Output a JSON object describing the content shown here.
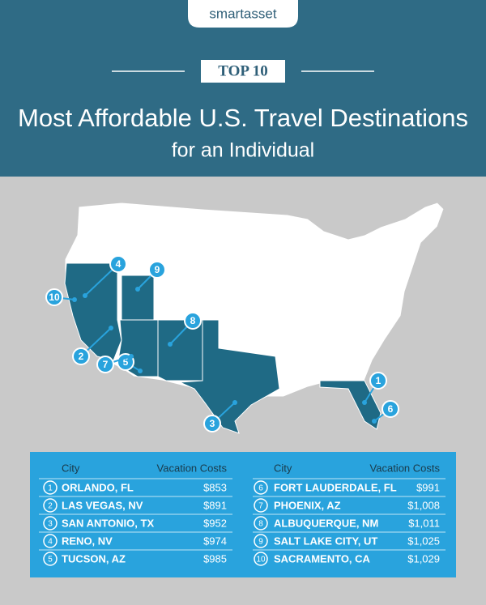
{
  "brand": "smartasset",
  "badge": "TOP 10",
  "title": [
    "Most Affordable U.S. Travel Destinations",
    "for an Individual"
  ],
  "map": {
    "markers": [
      "1",
      "2",
      "3",
      "4",
      "5",
      "6",
      "7",
      "8",
      "9",
      "10"
    ]
  },
  "table": {
    "left": {
      "header": [
        "City",
        "Vacation Costs"
      ],
      "rows": [
        [
          "1",
          "ORLANDO, FL",
          "$853"
        ],
        [
          "2",
          "LAS VEGAS, NV",
          "$891"
        ],
        [
          "3",
          "SAN ANTONIO, TX",
          "$952"
        ],
        [
          "4",
          "RENO, NV",
          "$974"
        ],
        [
          "5",
          "TUCSON, AZ",
          "$985"
        ]
      ]
    },
    "right": {
      "header": [
        "City",
        "Vacation Costs"
      ],
      "rows": [
        [
          "6",
          "FORT LAUDERDALE, FL",
          "$991"
        ],
        [
          "7",
          "PHOENIX, AZ",
          "$1,008"
        ],
        [
          "8",
          "ALBUQUERQUE, NM",
          "$1,011"
        ],
        [
          "9",
          "SALT LAKE CITY, UT",
          "$1,025"
        ],
        [
          "10",
          "SACRAMENTO, CA",
          "$1,029"
        ]
      ]
    }
  }
}
